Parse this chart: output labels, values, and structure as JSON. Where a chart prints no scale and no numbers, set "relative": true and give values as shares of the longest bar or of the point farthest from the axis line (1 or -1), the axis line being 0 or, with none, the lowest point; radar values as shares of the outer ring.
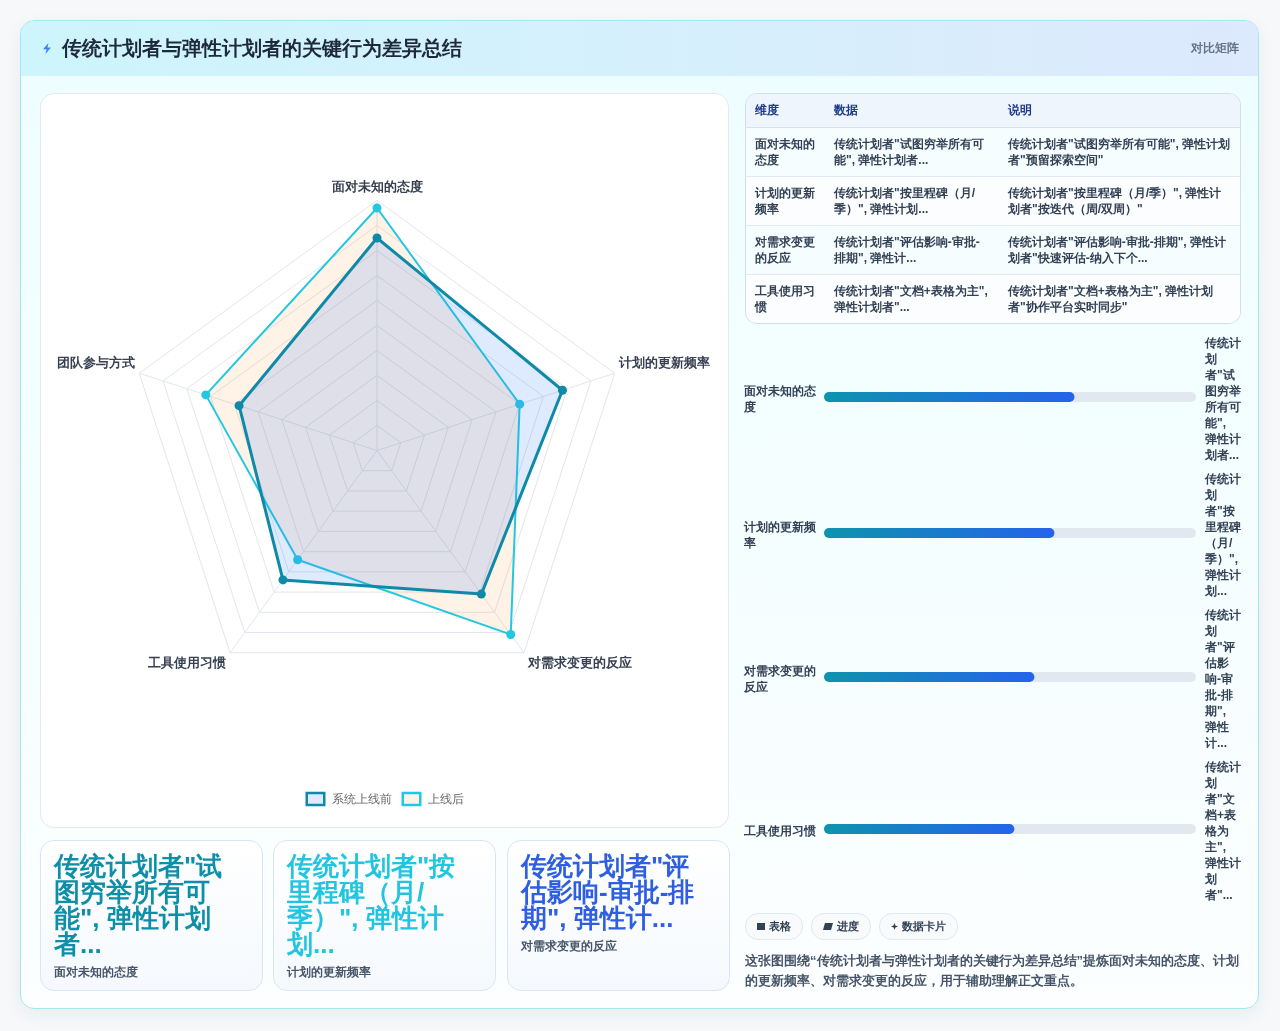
{
  "chart_data": [
    {
      "type": "other",
      "title": "传统计划者与弹性计划者的关键行为差异总结",
      "subtitle": "对比矩阵"
    },
    {
      "type": "radar",
      "categories": [
        "面对未知的态度",
        "计划的更新频率",
        "对需求变更的反应",
        "工具使用习惯",
        "团队参与方式"
      ],
      "relative": true,
      "series": [
        {
          "name": "系统上线前",
          "color": "#0e8aa8",
          "values": [
            0.85,
            0.78,
            0.71,
            0.64,
            0.58
          ]
        },
        {
          "name": "上线后",
          "color": "#22c8e2",
          "values": [
            0.97,
            0.6,
            0.91,
            0.54,
            0.72
          ]
        }
      ],
      "grid": true,
      "legend": "bottom",
      "marker": "circle"
    },
    {
      "type": "other",
      "ylabel": "维度",
      "categories": [
        "数据",
        "说明"
      ],
      "y_categories": [
        "面对未知的态度",
        "计划的更新频率",
        "对需求变更的反应",
        "工具使用习惯"
      ],
      "cell_labels": [
        [
          "传统计划者\"试图穷举所有可能\", 弹性计划者...",
          "传统计划者\"试图穷举所有可能\", 弹性计划者\"预留探索空间\""
        ],
        [
          "传统计划者\"按里程碑（月/季）\", 弹性计划...",
          "传统计划者\"按里程碑（月/季）\", 弹性计划者\"按迭代（周/双周）\""
        ],
        [
          "传统计划者\"评估影响-审批-排期\", 弹性计...",
          "传统计划者\"评估影响-审批-排期\", 弹性计划者\"快速评估-纳入下个..."
        ],
        [
          "传统计划者\"文档+表格为主\", 弹性计划者\"...",
          "传统计划者\"文档+表格为主\", 弹性计划者\"协作平台实时同步\""
        ]
      ]
    },
    {
      "type": "bar",
      "orientation": "horizontal",
      "relative": true,
      "categories": [
        "面对未知的态度",
        "计划的更新频率",
        "对需求变更的反应",
        "工具使用习惯"
      ],
      "values": [
        1,
        0.92,
        0.84,
        0.76
      ],
      "color": "#0e93ad",
      "annotations": [
        "传统计划者\"试图穷举所有可能\", 弹性计划者...",
        "传统计划者\"按里程碑（月/季）\", 弹性计划...",
        "传统计划者\"评估影响-审批-排期\", 弹性计...",
        "传统计划者\"文档+表格为主\", 弹性计划者\"..."
      ]
    },
    {
      "type": "other",
      "title": "传统计划者\"试图穷举所有可能\", 弹性计划者...",
      "subtitle": "面对未知的态度"
    },
    {
      "type": "other",
      "title": "传统计划者\"按里程碑（月/季）\", 弹性计划...",
      "subtitle": "计划的更新频率"
    },
    {
      "type": "other",
      "title": "传统计划者\"评估影响-审批-排期\", 弹性计...",
      "subtitle": "对需求变更的反应"
    },
    {
      "type": "other",
      "annotations": [
        "表格",
        "进度",
        "数据卡片",
        "这张图围绕“传统计划者与弹性计划者的关键行为差异总结”提炼面对未知的态度、计划的更新频率、对需求变更的反应，用于辅助理解正文重点。"
      ]
    }
  ]
}
